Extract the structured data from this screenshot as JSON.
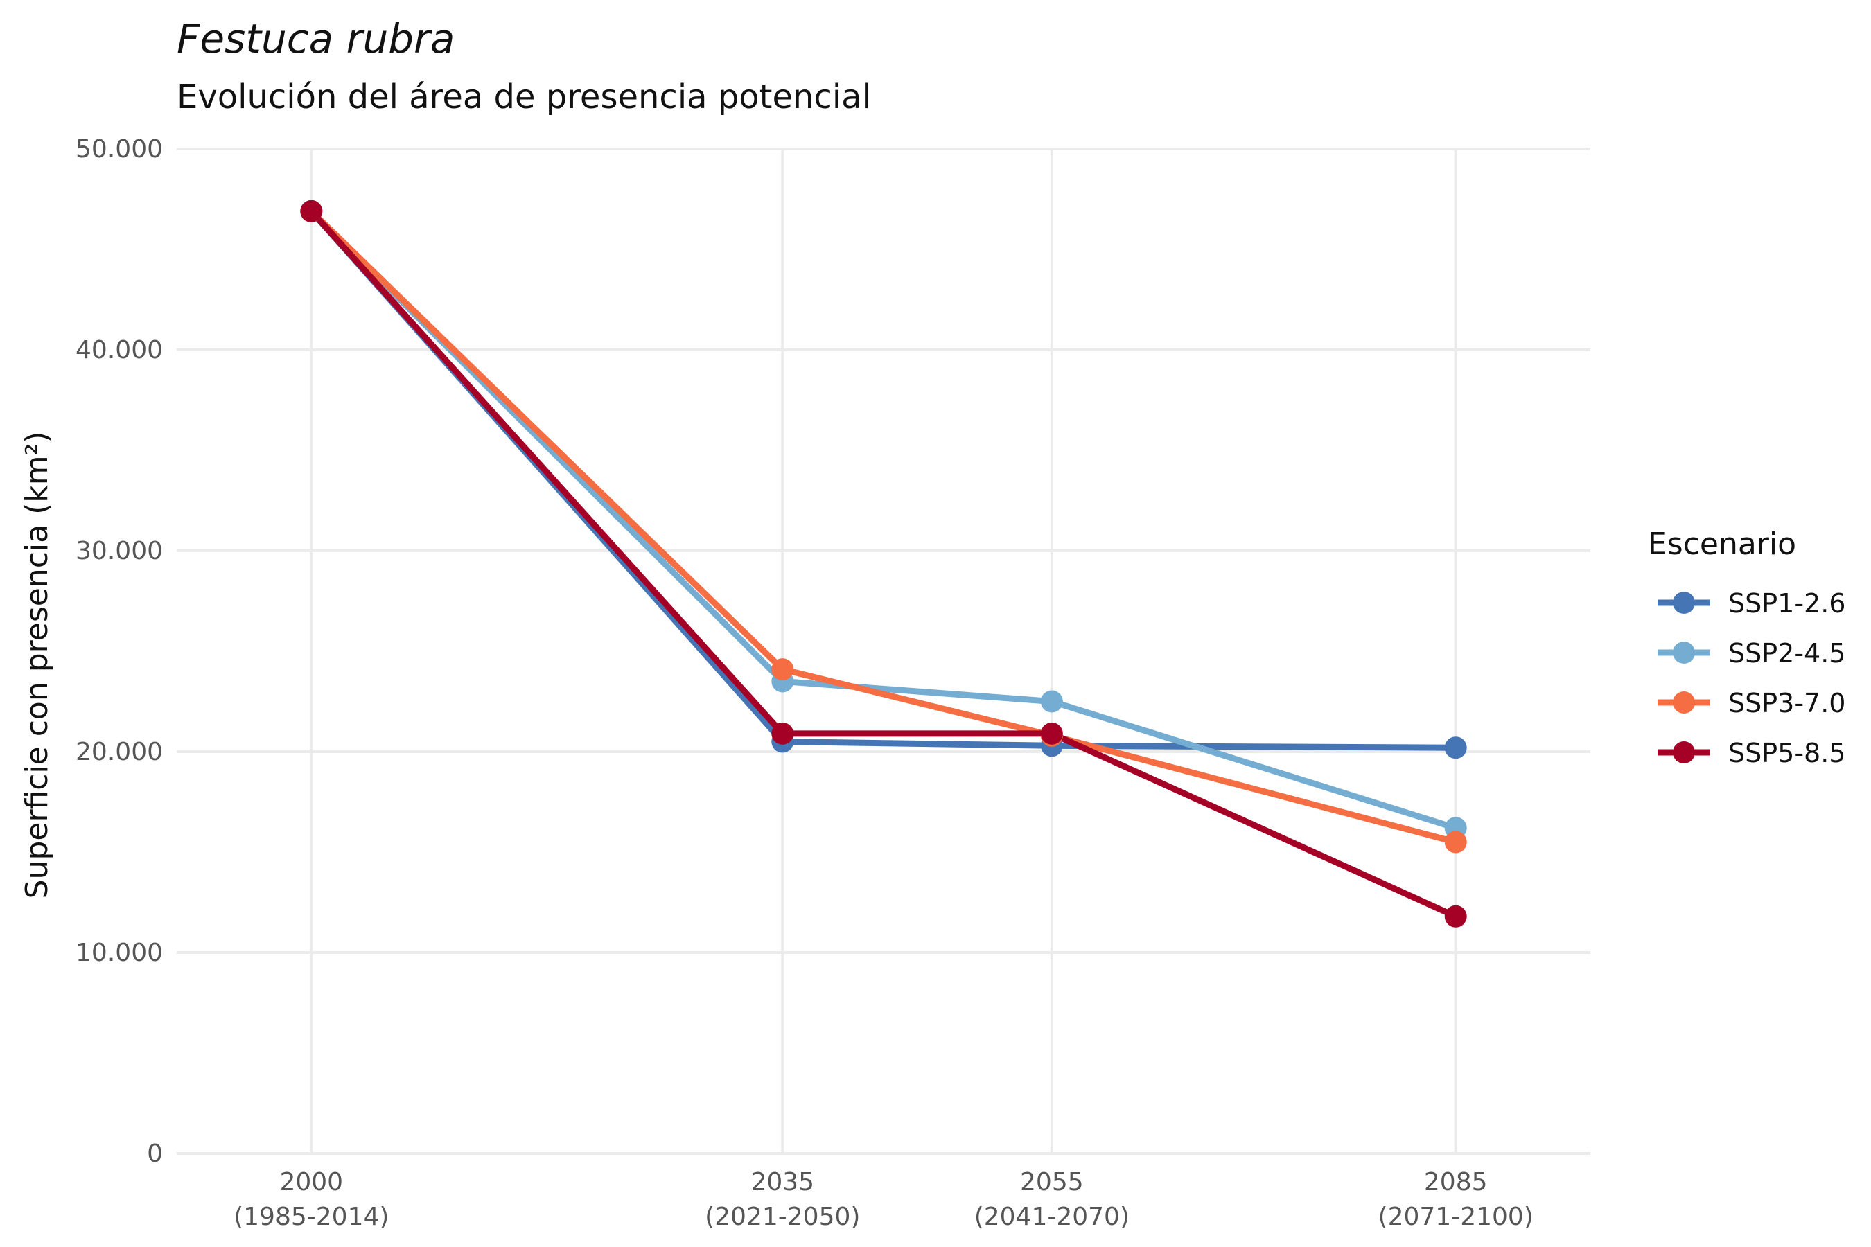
{
  "chart_data": {
    "type": "line",
    "title": "Festuca rubra",
    "subtitle": "Evolución del área de presencia potencial",
    "ylabel": "Superficie con presencia (km²)",
    "ylim": [
      0,
      50000
    ],
    "yticks": [
      0,
      10000,
      20000,
      30000,
      40000,
      50000
    ],
    "ytick_labels": [
      "0",
      "10.000",
      "20.000",
      "30.000",
      "40.000",
      "50.000"
    ],
    "x": [
      2000,
      2035,
      2055,
      2085
    ],
    "x_labels": [
      {
        "year": "2000",
        "range": "(1985-2014)"
      },
      {
        "year": "2035",
        "range": "(2021-2050)"
      },
      {
        "year": "2055",
        "range": "(2041-2070)"
      },
      {
        "year": "2085",
        "range": "(2071-2100)"
      }
    ],
    "xlim": [
      1990,
      2095
    ],
    "grid": true,
    "legend": {
      "title": "Escenario",
      "placement": "right"
    },
    "series": [
      {
        "name": "SSP1-2.6",
        "color": "#4575b4",
        "values": [
          46900,
          20500,
          20300,
          20200
        ]
      },
      {
        "name": "SSP2-4.5",
        "color": "#74add1",
        "values": [
          46900,
          23500,
          22500,
          16200
        ]
      },
      {
        "name": "SSP3-7.0",
        "color": "#f46d43",
        "values": [
          46900,
          24100,
          20800,
          15500
        ]
      },
      {
        "name": "SSP5-8.5",
        "color": "#a50026",
        "values": [
          46900,
          20900,
          20900,
          11800
        ]
      }
    ]
  }
}
